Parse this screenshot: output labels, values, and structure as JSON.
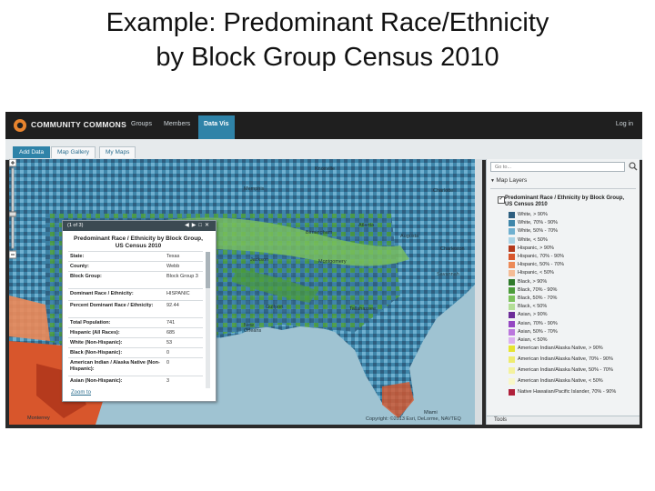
{
  "slide": {
    "title_line1": "Example: Predominant Race/Ethnicity",
    "title_line2": "by Block Group Census 2010"
  },
  "app": {
    "brand": "COMMUNITY COMMONS",
    "nav": [
      "Groups",
      "Members",
      "Data Vis"
    ],
    "active_nav": "Data Vis",
    "login": "Log in",
    "tabs": [
      "Add Data",
      "Map Gallery",
      "My Maps"
    ],
    "active_tab": "Add Data",
    "accent_color": "#2f83a8"
  },
  "map": {
    "labels": {
      "memphis": "Memphis",
      "knoxville": "Knoxville",
      "charlotte": "Charlotte",
      "birmingham": "Birmingham",
      "atlanta": "Atlanta",
      "augusta": "Augusta",
      "charleston": "Charleston",
      "jackson": "Jackson",
      "montgomery": "Montgomery",
      "savannah": "Savannah",
      "gulfport": "Gulfport",
      "tallahassee": "Tallahassee",
      "new_orleans": "New Orleans",
      "miami": "Miami",
      "monterrey": "Monterrey"
    },
    "copyright": "Copyright: ©2013 Esri, DeLorme, NAVTEQ"
  },
  "popup": {
    "count": "(1 of 3)",
    "title": "Predominant Race / Ethnicity by Block Group, US Census 2010",
    "rows": [
      {
        "key": "State:",
        "value": "Texas"
      },
      {
        "key": "County:",
        "value": "Webb"
      },
      {
        "key": "Block Group:",
        "value": "Block Group 3"
      },
      {
        "key": "Dominant Race / Ethnicity:",
        "value": "HISPANIC"
      },
      {
        "key": "Percent Dominant Race / Ethnicity:",
        "value": "92.44"
      },
      {
        "key": "Total Population:",
        "value": "741"
      },
      {
        "key": "Hispanic (All Races):",
        "value": "685"
      },
      {
        "key": "White (Non-Hispanic):",
        "value": "53"
      },
      {
        "key": "Black (Non-Hispanic):",
        "value": "0"
      },
      {
        "key": "American Indian / Alaska Native (Non-Hispanic):",
        "value": "0"
      },
      {
        "key": "Asian (Non-Hispanic):",
        "value": "3"
      }
    ],
    "zoom_link": "Zoom to"
  },
  "sidebar": {
    "goto_placeholder": "Go to...",
    "layers_title": "Map Layers",
    "layer_name": "Predominant Race / Ethnicity by Block Group, US Census 2010",
    "legend": [
      {
        "label": "White, > 90%",
        "color": "#2e5f80"
      },
      {
        "label": "White, 70% - 90%",
        "color": "#3f86aa"
      },
      {
        "label": "White, 50% - 70%",
        "color": "#6fb0d0"
      },
      {
        "label": "White, < 50%",
        "color": "#a9d3e6"
      },
      {
        "label": "Hispanic, > 90%",
        "color": "#b53a1d"
      },
      {
        "label": "Hispanic, 70% - 90%",
        "color": "#d8562c"
      },
      {
        "label": "Hispanic, 50% - 70%",
        "color": "#ec8a58"
      },
      {
        "label": "Hispanic, < 50%",
        "color": "#f5bc96"
      },
      {
        "label": "Black, > 90%",
        "color": "#2f7a2a"
      },
      {
        "label": "Black, 70% - 90%",
        "color": "#4c9c3a"
      },
      {
        "label": "Black, 50% - 70%",
        "color": "#7cc25c"
      },
      {
        "label": "Black, < 50%",
        "color": "#b4de98"
      },
      {
        "label": "Asian, > 90%",
        "color": "#6d2c99"
      },
      {
        "label": "Asian, 70% - 90%",
        "color": "#9547c2"
      },
      {
        "label": "Asian, 50% - 70%",
        "color": "#bb77dd"
      },
      {
        "label": "Asian, < 50%",
        "color": "#dcb1f0"
      },
      {
        "label": "American Indian/Alaska Native, > 90%",
        "color": "#e6e432"
      },
      {
        "label": "American Indian/Alaska Native, 70% - 90%",
        "color": "#eeec70"
      },
      {
        "label": "American Indian/Alaska Native, 50% - 70%",
        "color": "#f4f29e"
      },
      {
        "label": "American Indian/Alaska Native, < 50%",
        "color": "#f8f7c8"
      },
      {
        "label": "Native Hawaiian/Pacific Islander, 70% - 90%",
        "color": "#b0203a"
      }
    ],
    "tools": "Tools"
  }
}
